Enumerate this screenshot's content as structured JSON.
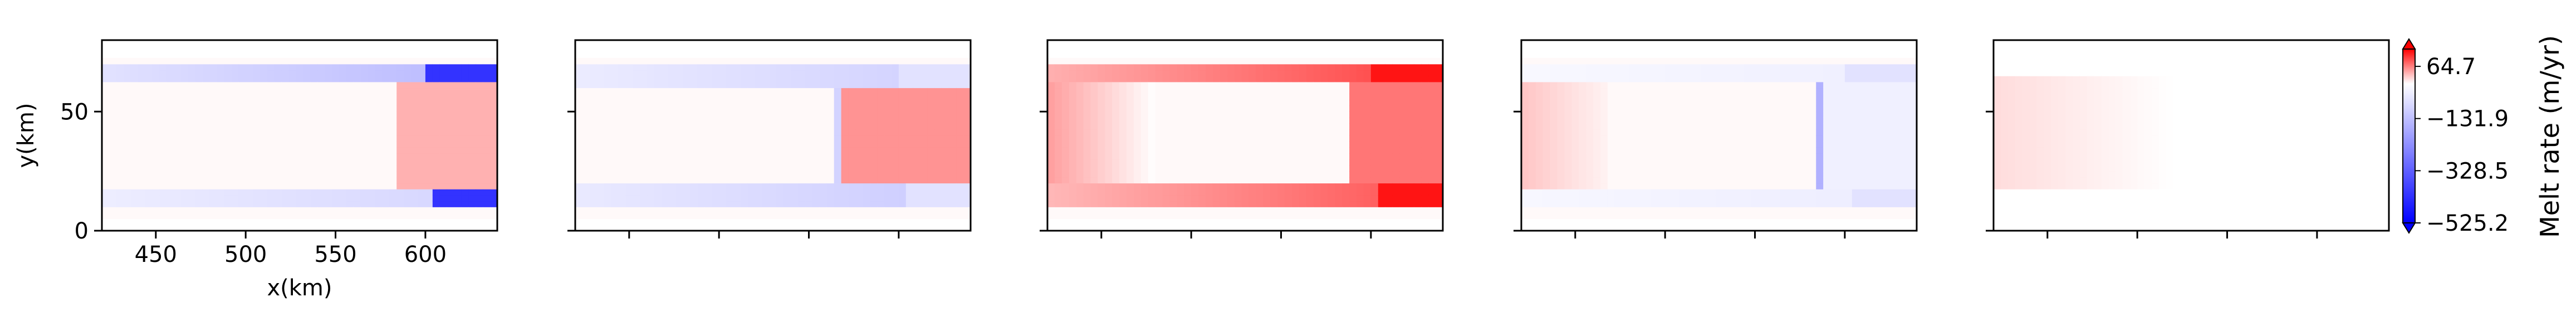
{
  "chart_data": {
    "type": "heatmap",
    "colormap": "bwr (diverging blue-white-red)",
    "panels": [
      {
        "name": "panel-1",
        "xlabel": "x(km)",
        "ylabel": "y(km)",
        "xlim": [
          420,
          640
        ],
        "ylim": [
          0,
          80
        ],
        "xticks": [
          450,
          500,
          550,
          600
        ],
        "yticks": [
          0,
          50
        ],
        "pattern": {
          "core_x": [
            430,
            580
          ],
          "core_y": [
            18,
            62
          ],
          "downstream_x": [
            585,
            640
          ],
          "downstream_value": 40,
          "lower_band_value": -90,
          "upper_band_value": -150,
          "band_strength_downstream": -420
        }
      },
      {
        "name": "panel-2",
        "xlim": [
          420,
          640
        ],
        "ylim": [
          0,
          80
        ],
        "xticks": [
          450,
          500,
          550,
          600
        ],
        "yticks": [
          0,
          50
        ],
        "pattern": {
          "core_x": [
            430,
            560
          ],
          "core_y": [
            20,
            60
          ],
          "downstream_x": [
            565,
            640
          ],
          "downstream_value": 55,
          "lower_band_value": -110,
          "upper_band_value": -100,
          "band_strength_downstream": -60,
          "front_line_value": -90
        }
      },
      {
        "name": "panel-3",
        "xlim": [
          420,
          640
        ],
        "ylim": [
          0,
          80
        ],
        "xticks": [
          450,
          500,
          550,
          600
        ],
        "yticks": [
          0,
          50
        ],
        "pattern": {
          "core_x": [
            440,
            590
          ],
          "core_y": [
            20,
            62
          ],
          "upstream_value": 50,
          "downstream_x": [
            590,
            640
          ],
          "downstream_value": 70,
          "lower_band_value": 90,
          "upper_band_value": 100,
          "band_strength_downstream": 120
        }
      },
      {
        "name": "panel-4",
        "xlim": [
          420,
          640
        ],
        "ylim": [
          0,
          80
        ],
        "xticks": [
          450,
          500,
          550,
          600
        ],
        "yticks": [
          0,
          50
        ],
        "pattern": {
          "core_x": [
            430,
            580
          ],
          "core_y": [
            18,
            62
          ],
          "upstream_value": 30,
          "downstream_x": [
            585,
            640
          ],
          "downstream_value": -30,
          "lower_band_value": -40,
          "upper_band_value": -35,
          "band_strength_downstream": -60,
          "front_line_value": -160
        }
      },
      {
        "name": "panel-5",
        "xlim": [
          420,
          640
        ],
        "ylim": [
          0,
          80
        ],
        "xticks": [
          450,
          500,
          550,
          600
        ],
        "yticks": [
          0,
          50
        ],
        "pattern": {
          "core_x": [
            420,
            500
          ],
          "core_y": [
            18,
            65
          ],
          "upstream_value": 18,
          "fade_to_zero_at_x": 520
        }
      }
    ],
    "colorbar": {
      "label": "Melt rate (m/yr)",
      "vmin": -525.2,
      "vmax": 130,
      "ticks": [
        64.7,
        -131.9,
        -328.5,
        -525.2
      ],
      "tick_labels": [
        "64.7",
        "−131.9",
        "−328.5",
        "−525.2"
      ],
      "extend": "both"
    }
  }
}
